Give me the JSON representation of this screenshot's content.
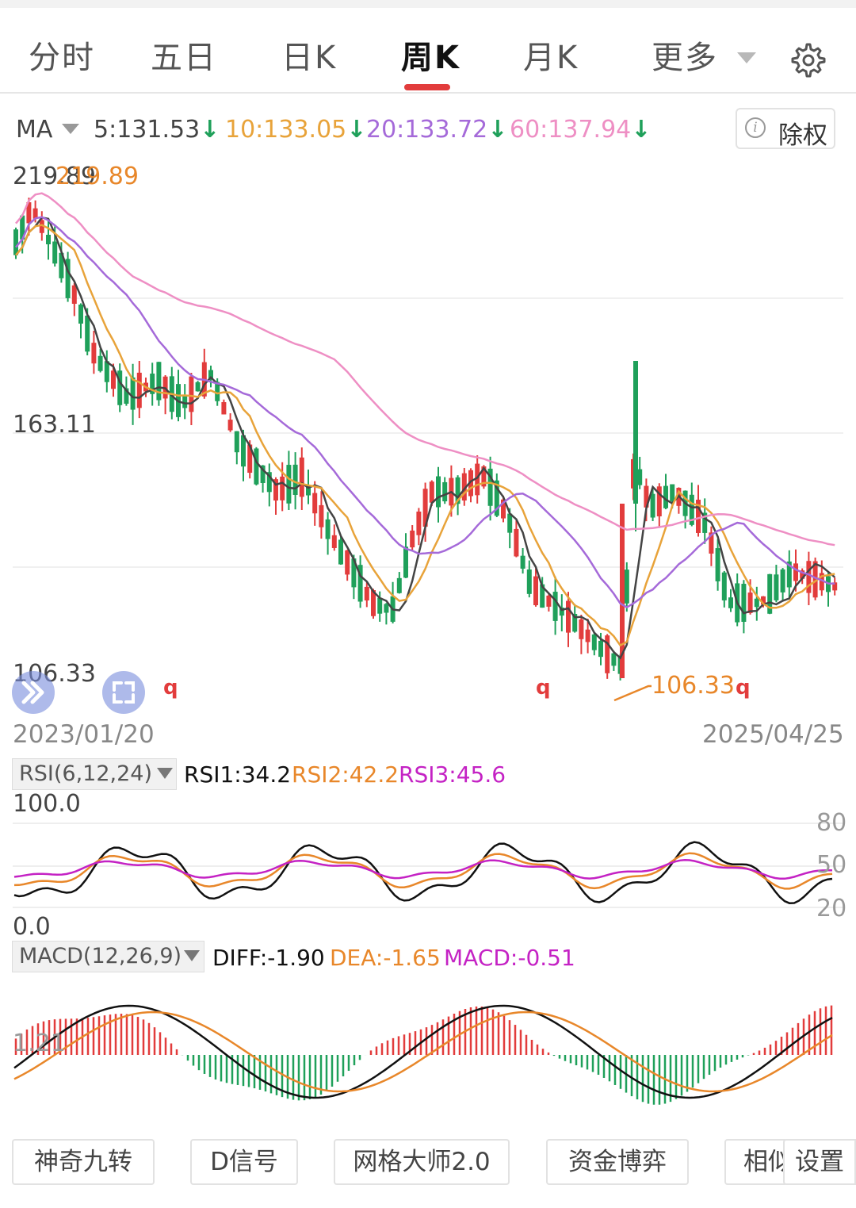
{
  "tabs": [
    {
      "label": "分时",
      "active": false
    },
    {
      "label": "五日",
      "active": false
    },
    {
      "label": "日K",
      "active": false
    },
    {
      "label": "周K",
      "active": true
    },
    {
      "label": "月K",
      "active": false
    },
    {
      "label": "更多",
      "active": false
    }
  ],
  "icons": {
    "settings": "gear-icon",
    "more_dropdown": "chevron-down-icon",
    "expand": "double-chevron-right-icon",
    "fullscreen": "fullscreen-icon",
    "info": "info-icon"
  },
  "colors": {
    "up": "#e23c3c",
    "down": "#1fa05a",
    "ma5": "#444444",
    "ma10": "#e8a33a",
    "ma20": "#a56ad9",
    "ma60": "#ee8fc4",
    "accent": "#e23c3c"
  },
  "ma_legend": {
    "label": "MA",
    "ma5": "5:131.53",
    "ma10": "10:133.05",
    "ma20": "20:133.72",
    "ma60": "60:137.94",
    "arrow": "↓"
  },
  "chuquan_label": "除权",
  "price_axis": {
    "high": "219.89",
    "mid": "163.11",
    "low": "106.33"
  },
  "annotations": {
    "max_label": "219.89",
    "min_label": "106.33",
    "marker": "q"
  },
  "dates": {
    "start": "2023/01/20",
    "end": "2025/04/25"
  },
  "rsi": {
    "selector": "RSI(6,12,24)",
    "rsi1": "RSI1:34.2",
    "rsi2": "RSI2:42.2",
    "rsi3": "RSI3:45.6",
    "top": "100.0",
    "bottom": "0.0",
    "levels": [
      "80",
      "50",
      "20"
    ]
  },
  "macd": {
    "selector": "MACD(12,26,9)",
    "diff": "DIFF:-1.90",
    "dea": "DEA:-1.65",
    "macd": "MACD:-0.51",
    "level": "1.21"
  },
  "bottom_buttons": [
    "神奇九转",
    "D信号",
    "网格大师2.0",
    "资金博弈",
    "相似K线",
    "设置"
  ]
}
